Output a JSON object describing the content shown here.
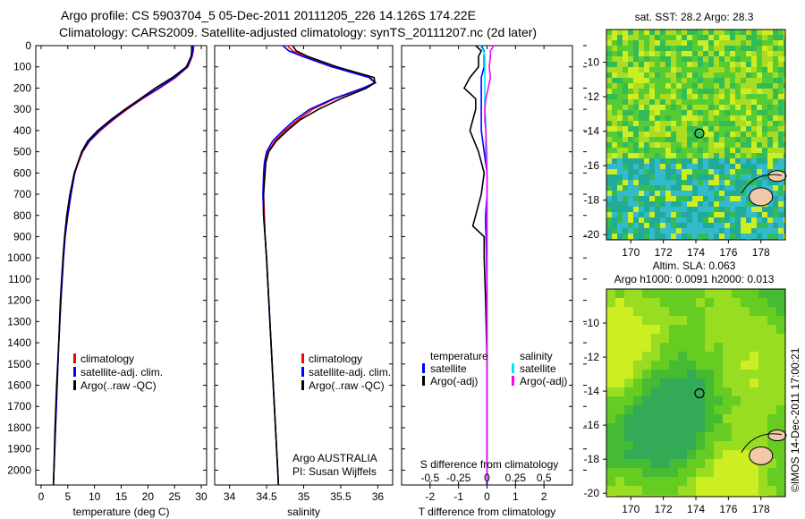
{
  "title_line1": "Argo profile: CS 5903704_5 05-Dec-2011 20111205_226 14.126S 174.22E",
  "title_line2": "Climatology: CARS2009. Satellite-adjusted climatology: synTS_20111207.nc (2d later)",
  "copyright": "©IMOS 14-Dec-2011 17:00:21",
  "colors": {
    "climatology": "#ff0000",
    "satellite": "#0000ff",
    "argo": "#000000",
    "sal_satellite": "#00e5ff",
    "sal_argo": "#ff00ff"
  },
  "chart_data": [
    {
      "type": "line",
      "id": "temperature",
      "xlabel": "temperature (deg C)",
      "xlim": [
        -1,
        31
      ],
      "xticks": [
        "0",
        "5",
        "10",
        "15",
        "20",
        "25",
        "30"
      ],
      "ylim": [
        2070,
        0
      ],
      "yticks": [
        "0",
        "100",
        "200",
        "300",
        "400",
        "500",
        "600",
        "700",
        "800",
        "900",
        "1000",
        "1100",
        "1200",
        "1300",
        "1400",
        "1500",
        "1600",
        "1700",
        "1800",
        "1900",
        "2000"
      ],
      "depth": [
        0,
        25,
        50,
        100,
        150,
        200,
        250,
        300,
        350,
        400,
        450,
        500,
        550,
        600,
        700,
        800,
        900,
        1000,
        1200,
        1400,
        1600,
        1800,
        2000,
        2070
      ],
      "series": [
        {
          "name": "climatology",
          "values": [
            28.6,
            28.5,
            28.3,
            27.5,
            25.2,
            22.2,
            19.0,
            16.1,
            13.5,
            11.1,
            9.1,
            7.8,
            7.0,
            6.3,
            5.6,
            5.0,
            4.5,
            4.2,
            3.7,
            3.3,
            3.0,
            2.7,
            2.4,
            2.3
          ]
        },
        {
          "name": "satellite-adj. clim.",
          "values": [
            28.4,
            28.4,
            28.2,
            27.4,
            25.0,
            22.0,
            18.8,
            15.9,
            13.3,
            10.9,
            9.0,
            7.7,
            6.9,
            6.3,
            5.6,
            5.0,
            4.5,
            4.2,
            3.7,
            3.3,
            3.0,
            2.7,
            2.4,
            2.3
          ]
        },
        {
          "name": "Argo(..raw -QC)",
          "values": [
            28.2,
            28.2,
            28.1,
            27.2,
            24.6,
            21.4,
            18.6,
            15.7,
            13.0,
            10.6,
            8.7,
            7.6,
            6.9,
            6.2,
            5.4,
            4.8,
            4.4,
            4.1,
            3.6,
            3.3,
            2.9,
            2.6,
            2.4,
            2.3
          ]
        }
      ]
    },
    {
      "type": "line",
      "id": "salinity",
      "xlabel": "salinity",
      "xlim": [
        33.8,
        36.2
      ],
      "xticks": [
        "34",
        "34.5",
        "35",
        "35.5",
        "36"
      ],
      "ylim": [
        2070,
        0
      ],
      "depth": [
        0,
        25,
        50,
        100,
        150,
        175,
        200,
        250,
        300,
        350,
        400,
        450,
        500,
        550,
        600,
        700,
        800,
        900,
        1000,
        1200,
        1400,
        1600,
        1800,
        2000,
        2070
      ],
      "series": [
        {
          "name": "climatology",
          "values": [
            34.78,
            34.85,
            35.0,
            35.4,
            35.9,
            35.97,
            35.82,
            35.42,
            35.12,
            34.92,
            34.75,
            34.61,
            34.52,
            34.48,
            34.47,
            34.46,
            34.47,
            34.48,
            34.5,
            34.53,
            34.56,
            34.59,
            34.62,
            34.65,
            34.66
          ]
        },
        {
          "name": "satellite-adj. clim.",
          "values": [
            34.72,
            34.8,
            34.98,
            35.38,
            35.88,
            35.96,
            35.8,
            35.4,
            35.08,
            34.88,
            34.72,
            34.58,
            34.5,
            34.47,
            34.46,
            34.45,
            34.46,
            34.48,
            34.5,
            34.53,
            34.56,
            34.59,
            34.62,
            34.65,
            34.66
          ]
        },
        {
          "name": "Argo(..raw -QC)",
          "values": [
            34.85,
            34.9,
            35.05,
            35.45,
            35.95,
            35.96,
            35.85,
            35.5,
            35.2,
            34.95,
            34.78,
            34.63,
            34.53,
            34.49,
            34.48,
            34.46,
            34.46,
            34.48,
            34.5,
            34.53,
            34.56,
            34.59,
            34.62,
            34.65,
            34.66
          ]
        }
      ]
    },
    {
      "type": "line",
      "id": "difference",
      "xlabel": "T difference from climatology",
      "x2label": "S difference from climatology",
      "xlim": [
        -3,
        3
      ],
      "xticks": [
        "-2",
        "-1",
        "0",
        "1",
        "2"
      ],
      "x2ticks": [
        "-0.5",
        "-0.25",
        "0",
        "0.25",
        "0.5"
      ],
      "ylim": [
        2070,
        0
      ],
      "depth": [
        0,
        25,
        50,
        100,
        150,
        200,
        250,
        300,
        350,
        400,
        500,
        600,
        700,
        800,
        850,
        900,
        1000,
        1200,
        1500,
        2000,
        2070
      ],
      "series": [
        {
          "name": "temperature satellite",
          "values": [
            -0.2,
            -0.1,
            -0.1,
            -0.1,
            -0.2,
            -0.2,
            -0.2,
            -0.2,
            -0.2,
            -0.2,
            -0.1,
            0,
            0,
            -0.05,
            -0.05,
            -0.03,
            -0.02,
            0,
            0,
            0,
            0
          ]
        },
        {
          "name": "temperature Argo(-adj)",
          "values": [
            -0.4,
            -0.2,
            -0.3,
            -0.3,
            -0.6,
            -0.8,
            -0.4,
            -0.4,
            -0.5,
            -0.6,
            -0.3,
            -0.1,
            -0.2,
            -0.4,
            -0.5,
            -0.1,
            -0.1,
            -0.05,
            0,
            0,
            0
          ]
        },
        {
          "name": "salinity satellite",
          "values": [
            -0.06,
            -0.03,
            -0.02,
            -0.02,
            -0.02,
            -0.02,
            -0.02,
            -0.02,
            -0.01,
            -0.01,
            0,
            0,
            0,
            0,
            0,
            0,
            0,
            0,
            0,
            0,
            0
          ]
        },
        {
          "name": "salinity Argo(-adj)",
          "values": [
            0.06,
            0.03,
            0.03,
            0.02,
            0.03,
            0.01,
            -0.01,
            -0.02,
            -0.02,
            -0.01,
            -0.01,
            0,
            0,
            0,
            0,
            0,
            0,
            0,
            0,
            0,
            0
          ]
        }
      ]
    }
  ],
  "legend_tp": [
    "climatology",
    "satellite-adj. clim.",
    "Argo(..raw -QC)"
  ],
  "legend_diff": {
    "t_head": "temperature",
    "s_head": "salinity",
    "t1": "satellite",
    "t2": "Argo(-adj)",
    "s1": "satellite",
    "s2": "Argo(-adj)"
  },
  "sal_note1": "Argo AUSTRALIA",
  "sal_note2": "PI: Susan Wijffels",
  "maps": [
    {
      "title1": "sat. SST: 28.2  Argo: 28.3",
      "title2": "",
      "lat_ticks": [
        "-10",
        "-12",
        "-14",
        "-16",
        "-18",
        "-20"
      ],
      "lon_ticks": [
        "170",
        "172",
        "174",
        "176",
        "178"
      ],
      "argo_lon": 174.22,
      "argo_lat": -14.126
    },
    {
      "title1": "Altim. SLA: 0.063",
      "title2": "Argo h1000: 0.0091  h2000: 0.013",
      "lat_ticks": [
        "-10",
        "-12",
        "-14",
        "-16",
        "-18",
        "-20"
      ],
      "lon_ticks": [
        "170",
        "172",
        "174",
        "176",
        "178"
      ],
      "argo_lon": 174.22,
      "argo_lat": -14.126
    }
  ]
}
